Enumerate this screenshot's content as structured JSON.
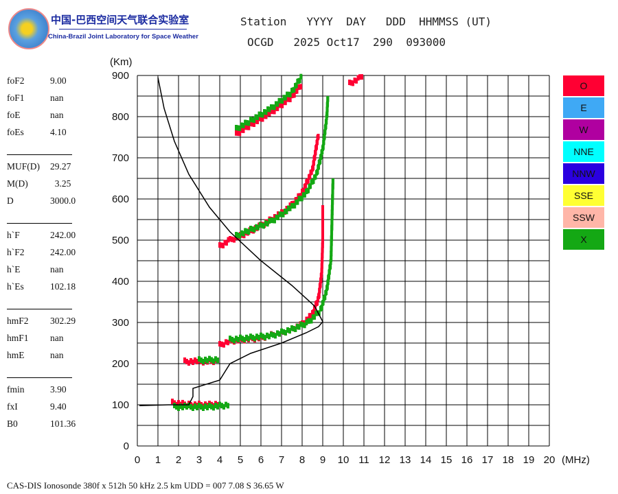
{
  "logo": {
    "cn": "中国-巴西空间天气联合实验室",
    "en": "China-Brazil Joint Laboratory for Space Weather"
  },
  "header": {
    "line1": "Station   YYYY  DAY   DDD  HHMMSS (UT)",
    "line2": "OCGD   2025 Oct17  290  093000"
  },
  "params": [
    {
      "k": "foF2",
      "v": "9.00"
    },
    {
      "k": "foF1",
      "v": "nan"
    },
    {
      "k": "foE",
      "v": "nan"
    },
    {
      "k": "foEs",
      "v": "4.10"
    },
    {
      "k": "MUF(D)",
      "v": "29.27"
    },
    {
      "k": "M(D)",
      "v": "  3.25"
    },
    {
      "k": "D",
      "v": "3000.0"
    },
    {
      "k": "h`F",
      "v": "242.00"
    },
    {
      "k": "h`F2",
      "v": "242.00"
    },
    {
      "k": "h`E",
      "v": "nan"
    },
    {
      "k": "h`Es",
      "v": "102.18"
    },
    {
      "k": "hmF2",
      "v": "302.29"
    },
    {
      "k": "hmF1",
      "v": "nan"
    },
    {
      "k": "hmE",
      "v": "nan"
    },
    {
      "k": "fmin",
      "v": "3.90"
    },
    {
      "k": "fxI",
      "v": "9.40"
    },
    {
      "k": "B0",
      "v": "101.36"
    }
  ],
  "legend": [
    {
      "label": "O",
      "color": "#ff0033"
    },
    {
      "label": "E",
      "color": "#3fa9f5"
    },
    {
      "label": "W",
      "color": "#b000a0"
    },
    {
      "label": "NNE",
      "color": "#00ffff"
    },
    {
      "label": "NNW",
      "color": "#2a00e0"
    },
    {
      "label": "SSE",
      "color": "#ffff33"
    },
    {
      "label": "SSW",
      "color": "#ffb6a8"
    },
    {
      "label": "X",
      "color": "#14a814"
    }
  ],
  "footer": "CAS-DIS Ionosonde 380f x 512h 50 kHz 2.5 km UDD = 007 7.08 S 36.65 W",
  "chart_data": {
    "type": "scatter",
    "xlabel": "(MHz)",
    "ylabel": "(Km)",
    "xlim": [
      0,
      20
    ],
    "ylim": [
      0,
      900
    ],
    "xticks": [
      "0",
      "1",
      "2",
      "3",
      "4",
      "5",
      "6",
      "7",
      "8",
      "9",
      "10",
      "11",
      "12",
      "13",
      "14",
      "15",
      "16",
      "17",
      "18",
      "19",
      "20"
    ],
    "yticks": [
      "0",
      "100",
      "200",
      "300",
      "400",
      "500",
      "600",
      "700",
      "800",
      "900"
    ],
    "grid": true,
    "series": [
      {
        "name": "O",
        "color": "#ff0033",
        "traces": [
          [
            [
              1.7,
              105
            ],
            [
              2.5,
              100
            ],
            [
              3.5,
              100
            ],
            [
              4.0,
              102
            ]
          ],
          [
            [
              2.3,
              205
            ],
            [
              3.0,
              205
            ],
            [
              3.9,
              207
            ]
          ],
          [
            [
              4.0,
              245
            ],
            [
              4.5,
              255
            ],
            [
              5,
              258
            ],
            [
              6,
              263
            ],
            [
              7,
              275
            ],
            [
              7.5,
              283
            ],
            [
              8,
              295
            ],
            [
              8.5,
              320
            ],
            [
              8.8,
              360
            ],
            [
              8.95,
              420
            ],
            [
              9.0,
              500
            ],
            [
              9.0,
              580
            ]
          ],
          [
            [
              4.0,
              485
            ],
            [
              4.5,
              500
            ],
            [
              5,
              510
            ],
            [
              6,
              535
            ],
            [
              7,
              565
            ],
            [
              7.5,
              585
            ],
            [
              8,
              615
            ],
            [
              8.5,
              670
            ],
            [
              8.8,
              760
            ]
          ],
          [
            [
              4.8,
              757
            ],
            [
              5.5,
              780
            ],
            [
              6.5,
              810
            ],
            [
              7.5,
              848
            ],
            [
              8,
              880
            ]
          ],
          [
            [
              10.3,
              880
            ],
            [
              10.8,
              893
            ],
            [
              11.0,
              900
            ]
          ]
        ]
      },
      {
        "name": "X",
        "color": "#14a814",
        "traces": [
          [
            [
              1.8,
              95
            ],
            [
              2.5,
              95
            ],
            [
              3.5,
              95
            ],
            [
              4.5,
              100
            ]
          ],
          [
            [
              3.0,
              208
            ],
            [
              4.0,
              210
            ]
          ],
          [
            [
              4.5,
              258
            ],
            [
              5.5,
              263
            ],
            [
              6.5,
              268
            ],
            [
              7.5,
              283
            ],
            [
              8.3,
              300
            ],
            [
              8.9,
              330
            ],
            [
              9.2,
              380
            ],
            [
              9.4,
              450
            ],
            [
              9.45,
              550
            ],
            [
              9.5,
              650
            ]
          ],
          [
            [
              4.8,
              510
            ],
            [
              5.5,
              525
            ],
            [
              6.5,
              545
            ],
            [
              7.5,
              580
            ],
            [
              8.2,
              615
            ],
            [
              8.7,
              660
            ],
            [
              9.0,
              720
            ],
            [
              9.2,
              800
            ],
            [
              9.25,
              850
            ]
          ],
          [
            [
              4.8,
              770
            ],
            [
              5.5,
              790
            ],
            [
              6.5,
              820
            ],
            [
              7.5,
              860
            ],
            [
              8,
              900
            ]
          ]
        ]
      },
      {
        "name": "profile",
        "color": "#000000",
        "line": [
          [
            0.1,
            98
          ],
          [
            1.5,
            100
          ],
          [
            2.5,
            100
          ],
          [
            2.7,
            120
          ],
          [
            2.7,
            140
          ],
          [
            4.0,
            160
          ],
          [
            4.5,
            200
          ],
          [
            5.5,
            225
          ],
          [
            7,
            250
          ],
          [
            8.2,
            275
          ],
          [
            8.8,
            290
          ],
          [
            9.0,
            302
          ],
          [
            8.6,
            340
          ],
          [
            7.5,
            390
          ],
          [
            6,
            450
          ],
          [
            4.5,
            520
          ],
          [
            3.5,
            580
          ],
          [
            2.5,
            660
          ],
          [
            1.8,
            740
          ],
          [
            1.3,
            820
          ],
          [
            1.0,
            895
          ]
        ]
      }
    ]
  }
}
